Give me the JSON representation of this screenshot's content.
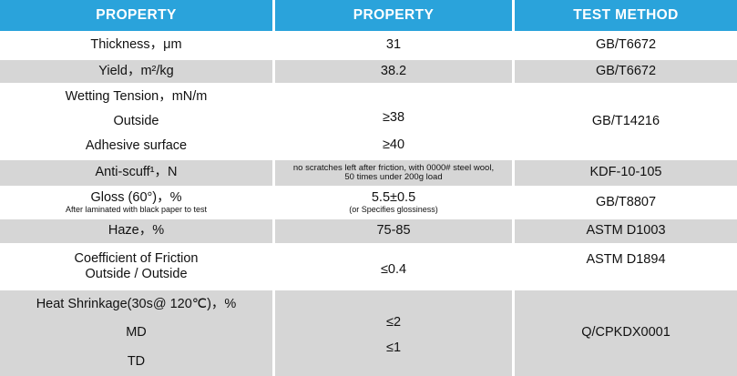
{
  "headers": [
    "PROPERTY",
    "PROPERTY",
    "TEST METHOD"
  ],
  "rows": {
    "thickness": {
      "prop": "Thickness，μm",
      "value": "31",
      "method": "GB/T6672"
    },
    "yield": {
      "prop": "Yield，m²/kg",
      "value": "38.2",
      "method": "GB/T6672"
    },
    "wetting": {
      "prop": "Wetting Tension，mN/m",
      "outside_label": "Outside",
      "outside_value": "≥38",
      "adhesive_label": "Adhesive surface",
      "adhesive_value": "≥40",
      "method": "GB/T14216"
    },
    "antiscuff": {
      "prop": "Anti-scuff¹，N",
      "value": "no scratches left after friction, with 0000# steel wool, 50 times under 200g load",
      "method": "KDF-10-105"
    },
    "gloss": {
      "prop": "Gloss (60°)，%",
      "note": "After laminated with black paper to test",
      "value": "5.5±0.5",
      "value_note": "(or Specifies glossiness)",
      "method": "GB/T8807"
    },
    "haze": {
      "prop": "Haze，%",
      "value": "75-85",
      "method": "ASTM D1003"
    },
    "cof": {
      "prop": "Coefficient of Friction",
      "prop_sub": "Outside / Outside",
      "value": "≤0.4",
      "method": "ASTM D1894"
    },
    "shrink": {
      "prop": "Heat Shrinkage(30s@ 120℃)，%",
      "md_label": "MD",
      "md_value": "≤2",
      "td_label": "TD",
      "td_value": "≤1",
      "method": "Q/CPKDX0001"
    }
  }
}
